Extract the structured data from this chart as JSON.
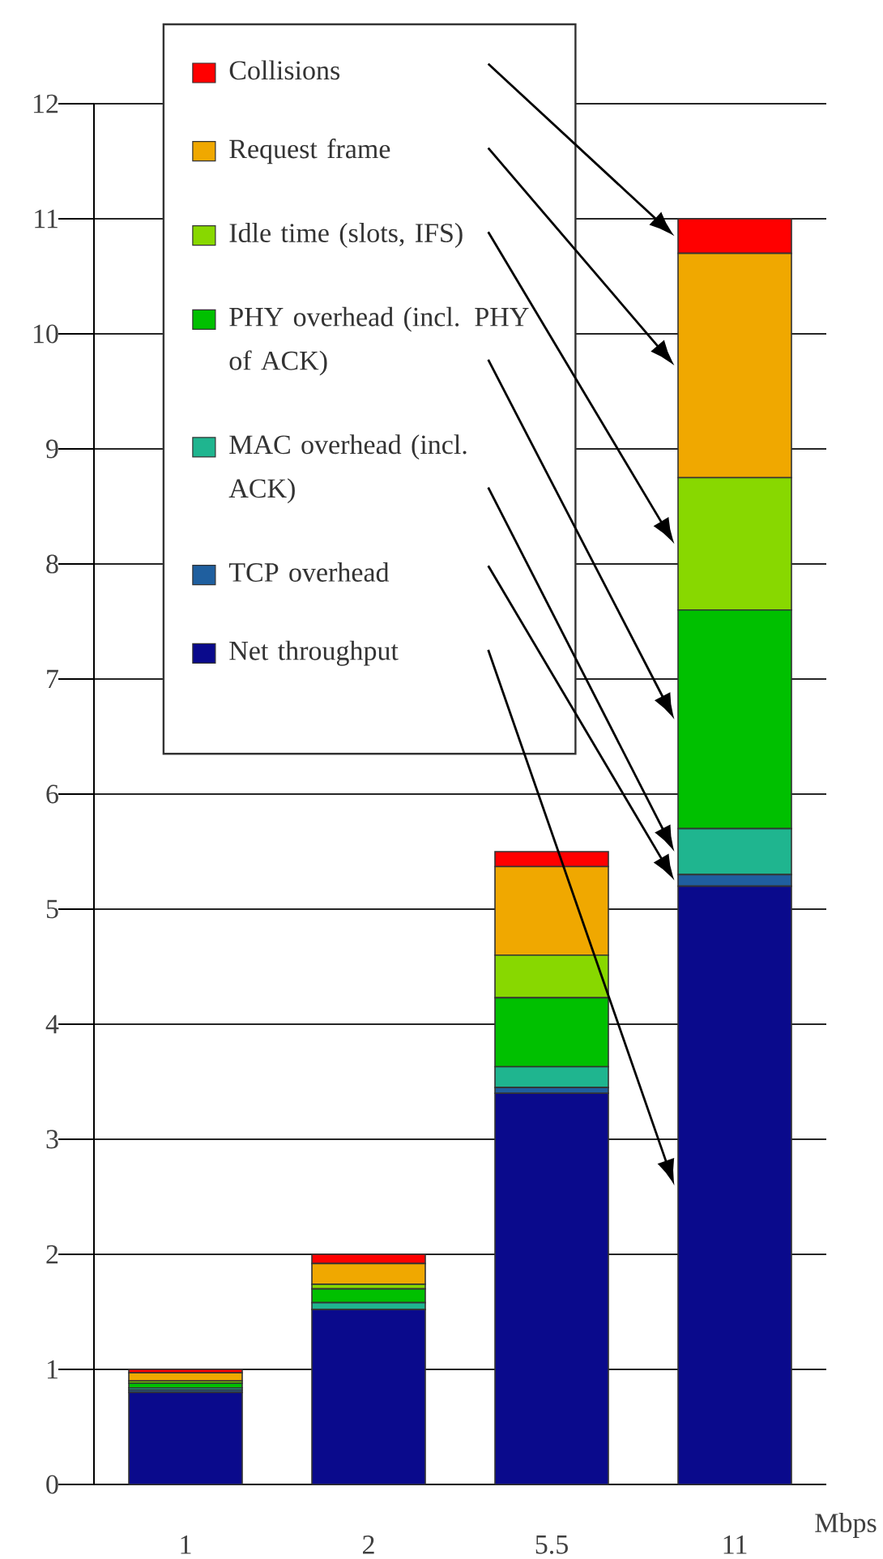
{
  "chart_data": {
    "type": "bar",
    "stacked": true,
    "xlabel": "Mbps",
    "categories": [
      "1",
      "2",
      "5.5",
      "11"
    ],
    "series": [
      {
        "name": "Net throughput",
        "color": "#0a0a8c",
        "values": [
          0.8,
          1.52,
          3.4,
          5.2
        ]
      },
      {
        "name": "TCP overhead",
        "color": "#1f5f9f",
        "values": [
          0.02,
          null,
          0.05,
          0.1
        ]
      },
      {
        "name": "MAC overhead (incl. ACK)",
        "color": "#1fb58f",
        "values": [
          0.02,
          0.06,
          0.18,
          0.4
        ]
      },
      {
        "name": "PHY overhead (incl. PHY of ACK)",
        "color": "#00c000",
        "values": [
          0.04,
          0.12,
          0.6,
          1.9
        ]
      },
      {
        "name": "Idle time (slots, IFS)",
        "color": "#88d800",
        "values": [
          0.02,
          0.04,
          0.37,
          1.15
        ]
      },
      {
        "name": "Request frame",
        "color": "#f0a800",
        "values": [
          0.07,
          0.18,
          0.77,
          1.95
        ]
      },
      {
        "name": "Collisions",
        "color": "#ff0000",
        "values": [
          0.03,
          0.08,
          0.13,
          0.3
        ]
      }
    ],
    "ylim": [
      0,
      12
    ],
    "yticks": [
      0,
      1,
      2,
      3,
      4,
      5,
      6,
      7,
      8,
      9,
      10,
      11,
      12
    ],
    "grid": "y",
    "legend": "top left"
  }
}
